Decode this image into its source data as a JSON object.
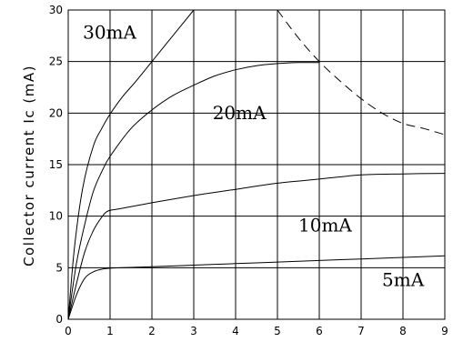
{
  "chart_data": {
    "type": "line",
    "title": "",
    "xlabel": "",
    "ylabel": "Collector current Ic (mA)",
    "xlim": [
      0,
      9
    ],
    "ylim": [
      0,
      30
    ],
    "xticks": [
      "0",
      "1",
      "2",
      "3",
      "4",
      "5",
      "6",
      "7",
      "8",
      "9"
    ],
    "yticks": [
      "0",
      "5",
      "10",
      "15",
      "20",
      "25",
      "30"
    ],
    "grid": true,
    "series": [
      {
        "name": "30mA",
        "style": "solid",
        "x": [
          0,
          0.15,
          0.35,
          0.6,
          0.8,
          1.0,
          1.3,
          1.6,
          2.0,
          2.5,
          3.0
        ],
        "y": [
          0,
          7,
          12.8,
          16.8,
          18.5,
          19.9,
          21.6,
          23.0,
          25.0,
          27.5,
          30
        ]
      },
      {
        "name": "20mA",
        "style": "solid",
        "x": [
          0,
          0.2,
          0.4,
          0.6,
          0.8,
          1.0,
          1.5,
          2.0,
          2.5,
          3.0,
          3.5,
          4.0,
          4.5,
          5.0,
          5.5,
          6.0
        ],
        "y": [
          0,
          5.5,
          9.3,
          12.4,
          14.3,
          15.8,
          18.5,
          20.3,
          21.7,
          22.7,
          23.6,
          24.2,
          24.6,
          24.8,
          24.9,
          24.9
        ]
      },
      {
        "name": "10mA",
        "style": "solid",
        "x": [
          0,
          0.2,
          0.4,
          0.6,
          0.8,
          0.95,
          1.2,
          2.0,
          3.0,
          4.0,
          5.0,
          6.0,
          7.0,
          8.0,
          9.0
        ],
        "y": [
          0,
          3.5,
          6.6,
          8.6,
          9.9,
          10.5,
          10.7,
          11.3,
          12.0,
          12.6,
          13.2,
          13.6,
          14.0,
          14.1,
          14.15
        ]
      },
      {
        "name": "5mA",
        "style": "solid",
        "x": [
          0,
          0.2,
          0.4,
          0.6,
          0.8,
          1.0,
          1.3,
          2.0,
          3.0,
          4.0,
          5.0,
          6.0,
          7.0,
          8.0,
          9.0
        ],
        "y": [
          0,
          2.4,
          4.0,
          4.6,
          4.85,
          4.95,
          5.0,
          5.1,
          5.25,
          5.4,
          5.55,
          5.7,
          5.85,
          6.0,
          6.15
        ]
      },
      {
        "style": "dashed",
        "x": [
          5.0,
          5.5,
          6.0,
          6.5,
          7.0,
          7.5,
          8.0,
          8.5,
          9.0
        ],
        "y": [
          30.0,
          27.3,
          25.0,
          23.1,
          21.4,
          20.0,
          19.0,
          18.5,
          17.9
        ]
      }
    ]
  }
}
